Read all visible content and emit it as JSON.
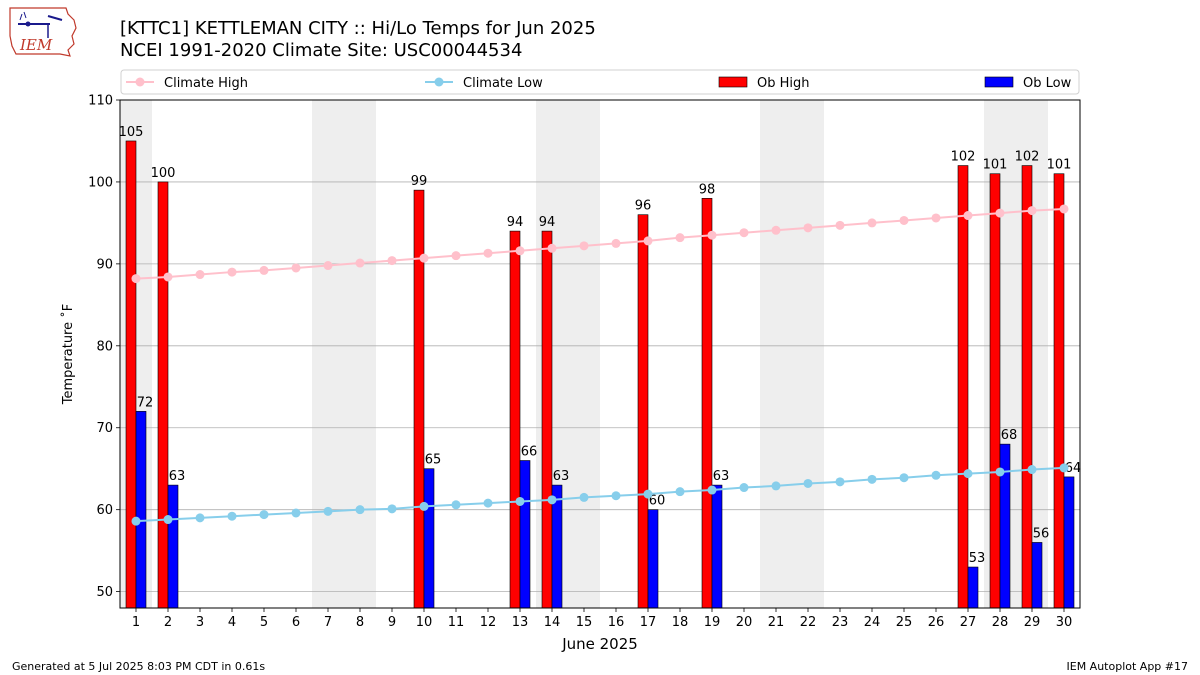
{
  "title_line1": "[KTTC1] KETTLEMAN CITY :: Hi/Lo Temps for Jun 2025",
  "title_line2": "NCEI 1991-2020 Climate Site: USC00044534",
  "logo_text": "IEM",
  "footer_left": "Generated at 5 Jul 2025 8:03 PM CDT in 0.61s",
  "footer_right": "IEM Autoplot App #17",
  "colors": {
    "climate_high": "#ffc0cb",
    "climate_low": "#87ceeb",
    "ob_high": "#ff0000",
    "ob_low": "#0000ff",
    "weekend_shade": "#eeeeee",
    "grid": "#b0b0b0"
  },
  "chart_data": {
    "type": "bar",
    "xlabel": "June 2025",
    "ylabel": "Temperature ˚F",
    "xlim": [
      0.5,
      30.5
    ],
    "ylim": [
      48,
      110
    ],
    "yticks": [
      50,
      60,
      70,
      80,
      90,
      100,
      110
    ],
    "grid": "horizontal",
    "legend_position": "top",
    "legend": [
      "Climate High",
      "Climate Low",
      "Ob High",
      "Ob Low"
    ],
    "x": [
      1,
      2,
      3,
      4,
      5,
      6,
      7,
      8,
      9,
      10,
      11,
      12,
      13,
      14,
      15,
      16,
      17,
      18,
      19,
      20,
      21,
      22,
      23,
      24,
      25,
      26,
      27,
      28,
      29,
      30
    ],
    "shaded_days": [
      1,
      7,
      8,
      14,
      15,
      21,
      22,
      28,
      29
    ],
    "climate_high": [
      88.2,
      88.4,
      88.7,
      89.0,
      89.2,
      89.5,
      89.8,
      90.1,
      90.4,
      90.7,
      91.0,
      91.3,
      91.6,
      91.9,
      92.2,
      92.5,
      92.8,
      93.2,
      93.5,
      93.8,
      94.1,
      94.4,
      94.7,
      95.0,
      95.3,
      95.6,
      95.9,
      96.2,
      96.5,
      96.7
    ],
    "climate_low": [
      58.6,
      58.8,
      59.0,
      59.2,
      59.4,
      59.6,
      59.8,
      60.0,
      60.1,
      60.4,
      60.6,
      60.8,
      61.0,
      61.2,
      61.5,
      61.7,
      61.9,
      62.2,
      62.4,
      62.7,
      62.9,
      63.2,
      63.4,
      63.7,
      63.9,
      64.2,
      64.4,
      64.6,
      64.9,
      65.1
    ],
    "ob_high": [
      {
        "day": 1,
        "value": 105
      },
      {
        "day": 2,
        "value": 100
      },
      {
        "day": 10,
        "value": 99
      },
      {
        "day": 13,
        "value": 94
      },
      {
        "day": 14,
        "value": 94
      },
      {
        "day": 17,
        "value": 96
      },
      {
        "day": 19,
        "value": 98
      },
      {
        "day": 27,
        "value": 102
      },
      {
        "day": 28,
        "value": 101
      },
      {
        "day": 29,
        "value": 102
      },
      {
        "day": 30,
        "value": 101
      }
    ],
    "ob_low": [
      {
        "day": 1,
        "value": 72
      },
      {
        "day": 2,
        "value": 63
      },
      {
        "day": 10,
        "value": 65
      },
      {
        "day": 13,
        "value": 66
      },
      {
        "day": 14,
        "value": 63
      },
      {
        "day": 17,
        "value": 60
      },
      {
        "day": 19,
        "value": 63
      },
      {
        "day": 27,
        "value": 53
      },
      {
        "day": 28,
        "value": 68
      },
      {
        "day": 29,
        "value": 56
      },
      {
        "day": 30,
        "value": 64
      }
    ]
  }
}
